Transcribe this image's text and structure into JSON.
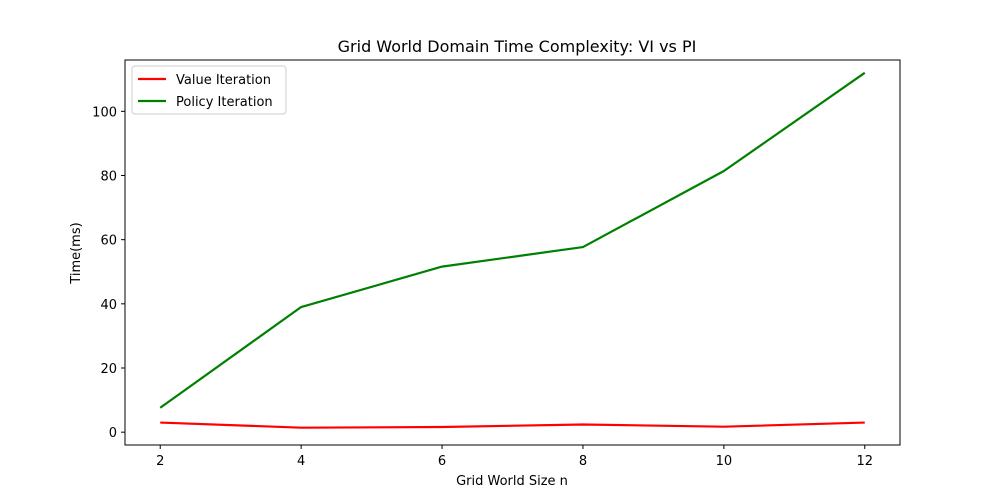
{
  "chart_data": {
    "type": "line",
    "title": "Grid World Domain Time Complexity: VI vs PI",
    "xlabel": "Grid World Size n",
    "ylabel": "Time(ms)",
    "x": [
      2,
      4,
      6,
      8,
      10,
      12
    ],
    "xticks": [
      "2",
      "4",
      "6",
      "8",
      "10",
      "12"
    ],
    "yticks": [
      "0",
      "20",
      "40",
      "60",
      "80",
      "100"
    ],
    "xlim": [
      1.5,
      12.5
    ],
    "ylim": [
      -4,
      116
    ],
    "grid": false,
    "legend_position": "top-left",
    "series": [
      {
        "name": "Value Iteration",
        "color": "#ff0000",
        "values": [
          3.0,
          1.4,
          1.6,
          2.4,
          1.7,
          3.0
        ]
      },
      {
        "name": "Policy Iteration",
        "color": "#008000",
        "values": [
          7.6,
          39.0,
          51.6,
          57.7,
          81.4,
          112.0
        ]
      }
    ]
  }
}
